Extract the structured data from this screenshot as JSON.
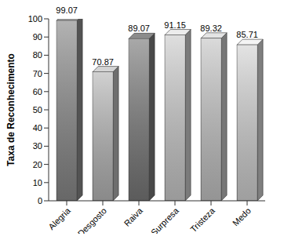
{
  "chart_data": {
    "type": "bar",
    "y_label": "Taxa de Reconhecimento",
    "categories": [
      "Alegria",
      "Desgosto",
      "Raiva",
      "Surpresa",
      "Tristeza",
      "Medo"
    ],
    "values": [
      99.07,
      70.87,
      89.07,
      91.15,
      89.32,
      85.71
    ],
    "colors": [
      "#8a8a8a",
      "#b8b8b8",
      "#7a7a7a",
      "#cdcdcd",
      "#c6c6c6",
      "#d4d4d4"
    ],
    "ylim": [
      0,
      100
    ],
    "yticks": [
      0,
      10,
      20,
      30,
      40,
      50,
      60,
      70,
      80,
      90,
      100
    ],
    "data_labels": true,
    "grid": false
  }
}
